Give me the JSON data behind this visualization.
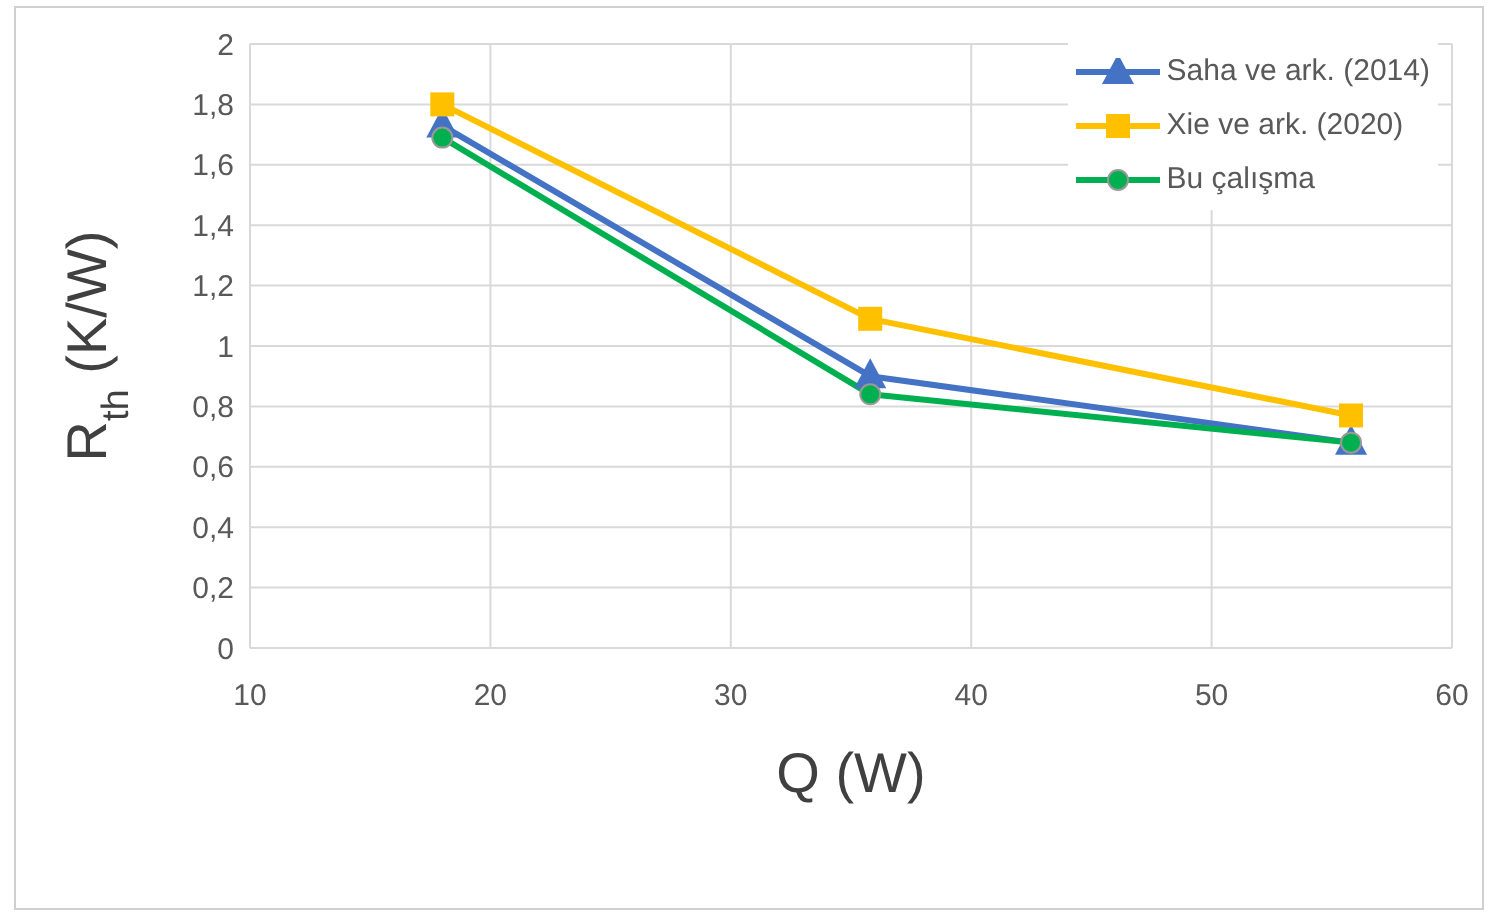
{
  "chart_data": {
    "type": "line",
    "xlabel": "Q (W)",
    "ylabel": "R$_{th}$ (K/W)",
    "xlim": [
      10,
      60
    ],
    "xticks": [
      10,
      20,
      30,
      40,
      50,
      60
    ],
    "ylim": [
      0,
      2
    ],
    "yticks": [
      {
        "value": 0,
        "label": "0"
      },
      {
        "value": 0.2,
        "label": "0,2"
      },
      {
        "value": 0.4,
        "label": "0,4"
      },
      {
        "value": 0.6,
        "label": "0,6"
      },
      {
        "value": 0.8,
        "label": "0,8"
      },
      {
        "value": 1,
        "label": "1"
      },
      {
        "value": 1.2,
        "label": "1,2"
      },
      {
        "value": 1.4,
        "label": "1,4"
      },
      {
        "value": 1.6,
        "label": "1,6"
      },
      {
        "value": 1.8,
        "label": "1,8"
      },
      {
        "value": 2,
        "label": "2"
      }
    ],
    "grid": true,
    "legend": "top right",
    "line_style": "solid",
    "x": [
      18,
      35.8,
      55.8
    ],
    "series": [
      {
        "name": "Saha ve ark. (2014)",
        "color": "#4472c4",
        "marker": "triangle",
        "values": [
          1.73,
          0.9,
          0.68
        ]
      },
      {
        "name": "Xie ve ark. (2020)",
        "color": "#ffc000",
        "marker": "square",
        "values": [
          1.8,
          1.09,
          0.77
        ]
      },
      {
        "name": "Bu çalışma",
        "color": "#00b050",
        "marker": "circle",
        "values": [
          1.69,
          0.84,
          0.68
        ]
      }
    ]
  }
}
